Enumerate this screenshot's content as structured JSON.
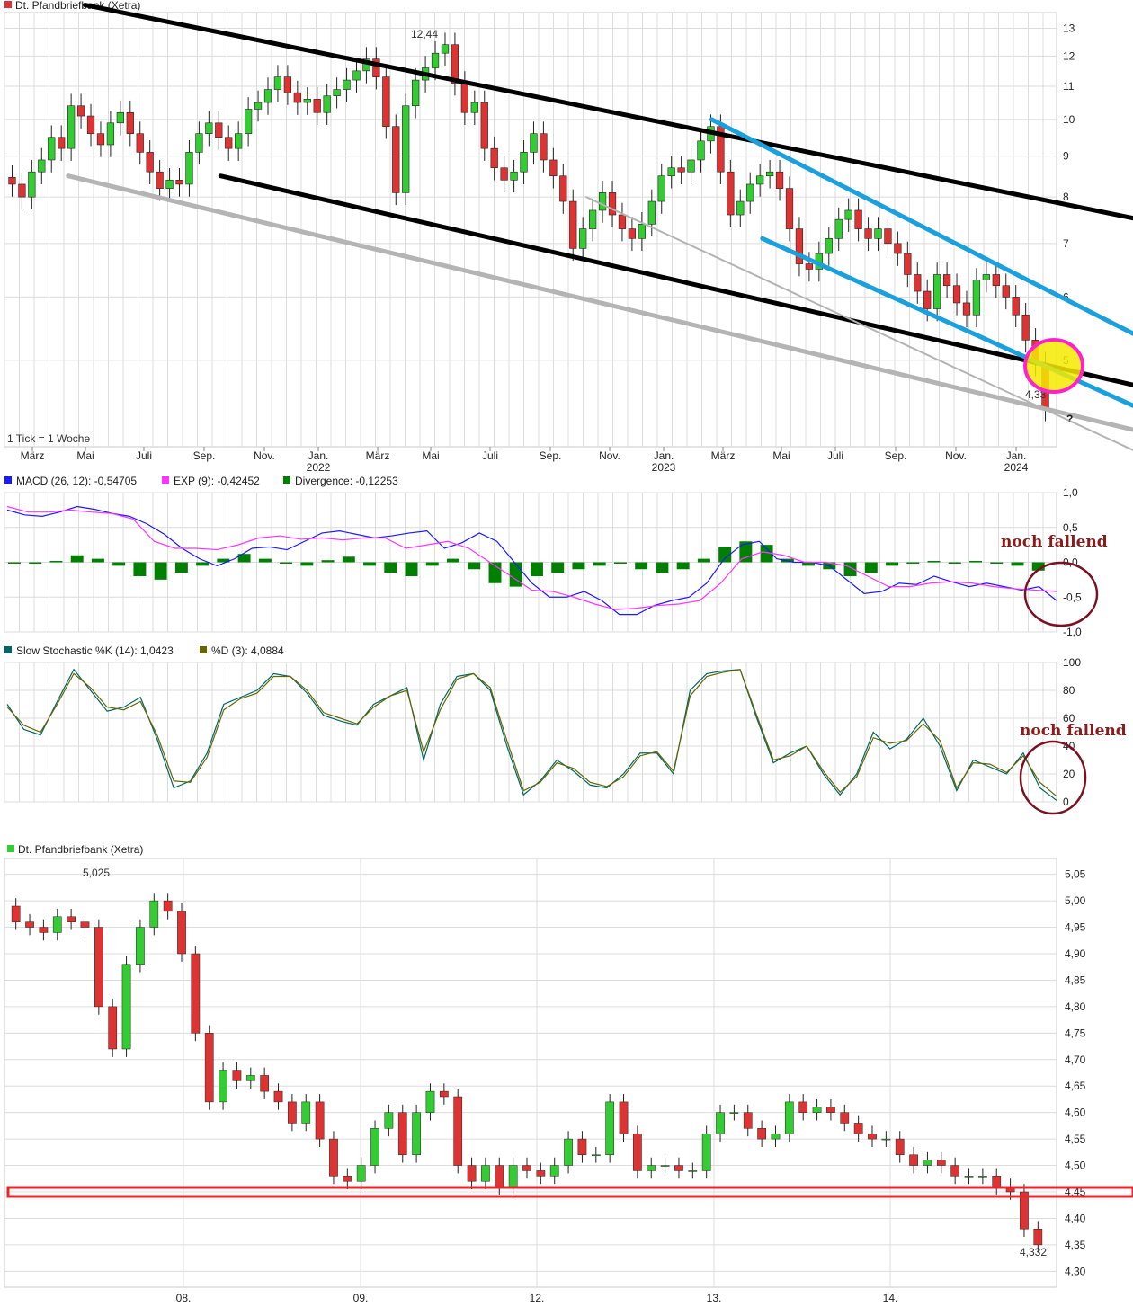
{
  "chart_data": [
    {
      "type": "candlestick",
      "title": "Dt. Pfandbriefbank (Xetra)",
      "note": "1 Tick = 1 Woche",
      "y_ticks": [
        5,
        6,
        7,
        8,
        9,
        10,
        11,
        12,
        13
      ],
      "y_scale": "log",
      "ylim": [
        3.9,
        13.6
      ],
      "x_ticks": [
        "März",
        "Mai",
        "Juli",
        "Sep.",
        "Nov.",
        "Jan.",
        "März",
        "Mai",
        "Juli",
        "Sep.",
        "Nov.",
        "Jan.",
        "März",
        "Mai",
        "Juli",
        "Sep.",
        "Nov.",
        "Jan."
      ],
      "x_years": [
        "2022",
        "2023",
        "2024"
      ],
      "high_label": "12,44",
      "low_label": "4,33",
      "question_mark": "?",
      "closes": [
        8.3,
        8.0,
        8.6,
        8.9,
        9.5,
        9.2,
        10.4,
        10.1,
        9.6,
        9.3,
        9.9,
        10.2,
        9.6,
        9.1,
        8.6,
        8.2,
        8.4,
        8.3,
        9.1,
        9.6,
        9.9,
        9.5,
        9.2,
        9.6,
        10.3,
        10.5,
        10.9,
        11.3,
        10.8,
        10.5,
        10.6,
        10.2,
        10.7,
        10.9,
        11.2,
        11.5,
        11.9,
        11.3,
        9.8,
        8.1,
        10.4,
        11.2,
        11.6,
        12.1,
        12.4,
        11.1,
        10.2,
        10.5,
        9.2,
        8.7,
        8.4,
        8.6,
        9.1,
        9.6,
        8.9,
        8.5,
        7.9,
        6.9,
        7.3,
        7.7,
        8.1,
        7.6,
        7.3,
        7.1,
        7.4,
        7.9,
        8.5,
        8.7,
        8.6,
        8.9,
        9.4,
        9.8,
        8.6,
        7.6,
        7.9,
        8.3,
        8.5,
        8.6,
        8.2,
        7.3,
        6.6,
        6.5,
        6.8,
        7.1,
        7.5,
        7.7,
        7.3,
        7.1,
        7.3,
        7.0,
        6.8,
        6.4,
        6.1,
        5.8,
        6.4,
        6.2,
        5.9,
        5.7,
        6.3,
        6.4,
        6.2,
        6.0,
        5.7,
        5.3,
        4.95,
        4.35
      ],
      "channels": [
        {
          "color": "#000000",
          "points": [
            [
              2021.35,
              13.9
            ],
            [
              2024.6,
              7.3
            ]
          ]
        },
        {
          "color": "#000000",
          "points": [
            [
              2021.75,
              8.5
            ],
            [
              2024.6,
              4.5
            ]
          ]
        },
        {
          "color": "#b4b4b4",
          "points": [
            [
              2021.3,
              8.5
            ],
            [
              2024.6,
              3.95
            ]
          ]
        },
        {
          "color": "#b4b4b4",
          "points": [
            [
              2022.83,
              8.0
            ],
            [
              2024.6,
              3.6
            ]
          ]
        },
        {
          "color": "#1aa0dc",
          "points": [
            [
              2023.2,
              10.0
            ],
            [
              2024.6,
              5.0
            ]
          ]
        },
        {
          "color": "#1aa0dc",
          "points": [
            [
              2023.35,
              7.1
            ],
            [
              2024.6,
              4.1
            ]
          ]
        }
      ]
    },
    {
      "type": "line",
      "title": "MACD",
      "legend": [
        "MACD (26, 12): -0,54705",
        "EXP (9): -0,42452",
        "Divergence: -0,12253"
      ],
      "y_ticks": [
        "1,0",
        "0,5",
        "0,0",
        "-0,5",
        "-1,0"
      ],
      "ylim": [
        -1.0,
        1.0
      ],
      "series": [
        {
          "color": "#1a1aff",
          "values": [
            0.75,
            0.68,
            0.66,
            0.72,
            0.8,
            0.76,
            0.7,
            0.66,
            0.55,
            0.4,
            0.2,
            0.05,
            -0.05,
            0.05,
            0.2,
            0.22,
            0.18,
            0.3,
            0.42,
            0.45,
            0.4,
            0.35,
            0.38,
            0.42,
            0.45,
            0.2,
            0.28,
            0.42,
            0.3,
            0.0,
            -0.3,
            -0.5,
            -0.5,
            -0.42,
            -0.55,
            -0.75,
            -0.75,
            -0.62,
            -0.55,
            -0.5,
            -0.3,
            0.05,
            0.25,
            0.3,
            0.05,
            0.0,
            0.0,
            -0.05,
            -0.25,
            -0.45,
            -0.42,
            -0.3,
            -0.32,
            -0.2,
            -0.28,
            -0.35,
            -0.3,
            -0.35,
            -0.4,
            -0.35,
            -0.55
          ]
        },
        {
          "color": "#ff33ff",
          "values": [
            0.8,
            0.72,
            0.72,
            0.75,
            0.72,
            0.7,
            0.62,
            0.3,
            0.2,
            0.2,
            0.18,
            0.25,
            0.35,
            0.38,
            0.33,
            0.35,
            0.32,
            0.35,
            0.35,
            0.2,
            0.25,
            0.3,
            0.2,
            0.0,
            -0.2,
            -0.4,
            -0.42,
            -0.5,
            -0.6,
            -0.68,
            -0.66,
            -0.62,
            -0.6,
            -0.55,
            -0.3,
            0.05,
            0.15,
            0.1,
            0.0,
            0.0,
            -0.05,
            -0.2,
            -0.35,
            -0.35,
            -0.3,
            -0.28,
            -0.3,
            -0.35,
            -0.38,
            -0.4,
            -0.42
          ]
        },
        {
          "color": "#008000",
          "values": [
            0.0,
            -0.02,
            0.02,
            0.1,
            0.05,
            -0.05,
            -0.2,
            -0.25,
            -0.15,
            -0.05,
            0.05,
            0.12,
            0.05,
            0.0,
            -0.05,
            0.03,
            0.08,
            -0.05,
            -0.15,
            -0.2,
            -0.05,
            0.05,
            -0.1,
            -0.3,
            -0.35,
            -0.2,
            -0.15,
            -0.1,
            -0.05,
            0.0,
            -0.1,
            -0.15,
            -0.1,
            0.05,
            0.22,
            0.3,
            0.25,
            0.05,
            -0.05,
            -0.1,
            -0.2,
            -0.15,
            -0.05,
            0.0,
            0.02,
            0.0,
            0.02,
            0.0,
            -0.05,
            -0.12
          ]
        }
      ],
      "annotation": "noch fallend"
    },
    {
      "type": "line",
      "title": "Slow Stochastic",
      "legend": [
        "Slow Stochastic %K (14): 1,0423",
        "%D (3): 4,0884"
      ],
      "y_ticks": [
        "100",
        "80",
        "60",
        "40",
        "20",
        "0"
      ],
      "ylim": [
        0,
        100
      ],
      "series": [
        {
          "color": "#006666",
          "values": [
            70,
            52,
            48,
            72,
            95,
            80,
            65,
            68,
            75,
            45,
            10,
            15,
            35,
            70,
            75,
            80,
            92,
            90,
            78,
            62,
            58,
            55,
            70,
            76,
            82,
            30,
            70,
            90,
            92,
            80,
            40,
            5,
            15,
            30,
            22,
            12,
            10,
            20,
            35,
            35,
            20,
            80,
            92,
            94,
            95,
            60,
            28,
            35,
            40,
            20,
            5,
            20,
            50,
            38,
            45,
            60,
            40,
            8,
            30,
            25,
            20,
            35,
            10,
            1
          ]
        },
        {
          "color": "#666600",
          "values": [
            68,
            55,
            50,
            70,
            92,
            82,
            68,
            66,
            72,
            48,
            15,
            14,
            32,
            66,
            74,
            78,
            90,
            90,
            80,
            64,
            60,
            56,
            68,
            76,
            80,
            36,
            66,
            88,
            92,
            82,
            44,
            8,
            14,
            28,
            24,
            14,
            11,
            18,
            33,
            36,
            22,
            76,
            90,
            93,
            95,
            62,
            30,
            33,
            40,
            22,
            7,
            18,
            46,
            42,
            44,
            56,
            44,
            10,
            28,
            27,
            21,
            33,
            14,
            4
          ]
        }
      ],
      "annotation": "noch fallend"
    },
    {
      "type": "candlestick",
      "title": "Dt. Pfandbriefbank (Xetra)",
      "y_ticks": [
        "5,05",
        "5,00",
        "4,95",
        "4,90",
        "4,85",
        "4,80",
        "4,75",
        "4,70",
        "4,65",
        "4,60",
        "4,55",
        "4,50",
        "4,45",
        "4,40",
        "4,35",
        "4,30"
      ],
      "ylim": [
        4.27,
        5.08
      ],
      "x_ticks": [
        "08.",
        "09.",
        "12.",
        "13.",
        "14."
      ],
      "high_label": "5,025",
      "low_label": "4,332",
      "support_level": 4.45,
      "closes": [
        4.96,
        4.95,
        4.94,
        4.97,
        4.96,
        4.95,
        4.8,
        4.72,
        4.88,
        4.95,
        5.0,
        4.98,
        4.9,
        4.75,
        4.62,
        4.68,
        4.66,
        4.67,
        4.64,
        4.62,
        4.58,
        4.62,
        4.55,
        4.48,
        4.47,
        4.5,
        4.57,
        4.6,
        4.52,
        4.6,
        4.64,
        4.63,
        4.5,
        4.47,
        4.5,
        4.46,
        4.5,
        4.49,
        4.48,
        4.5,
        4.55,
        4.52,
        4.52,
        4.62,
        4.56,
        4.49,
        4.5,
        4.5,
        4.49,
        4.49,
        4.56,
        4.6,
        4.6,
        4.57,
        4.55,
        4.56,
        4.62,
        4.6,
        4.61,
        4.6,
        4.58,
        4.56,
        4.55,
        4.55,
        4.52,
        4.5,
        4.51,
        4.5,
        4.48,
        4.48,
        4.48,
        4.46,
        4.45,
        4.38,
        4.35
      ]
    }
  ]
}
